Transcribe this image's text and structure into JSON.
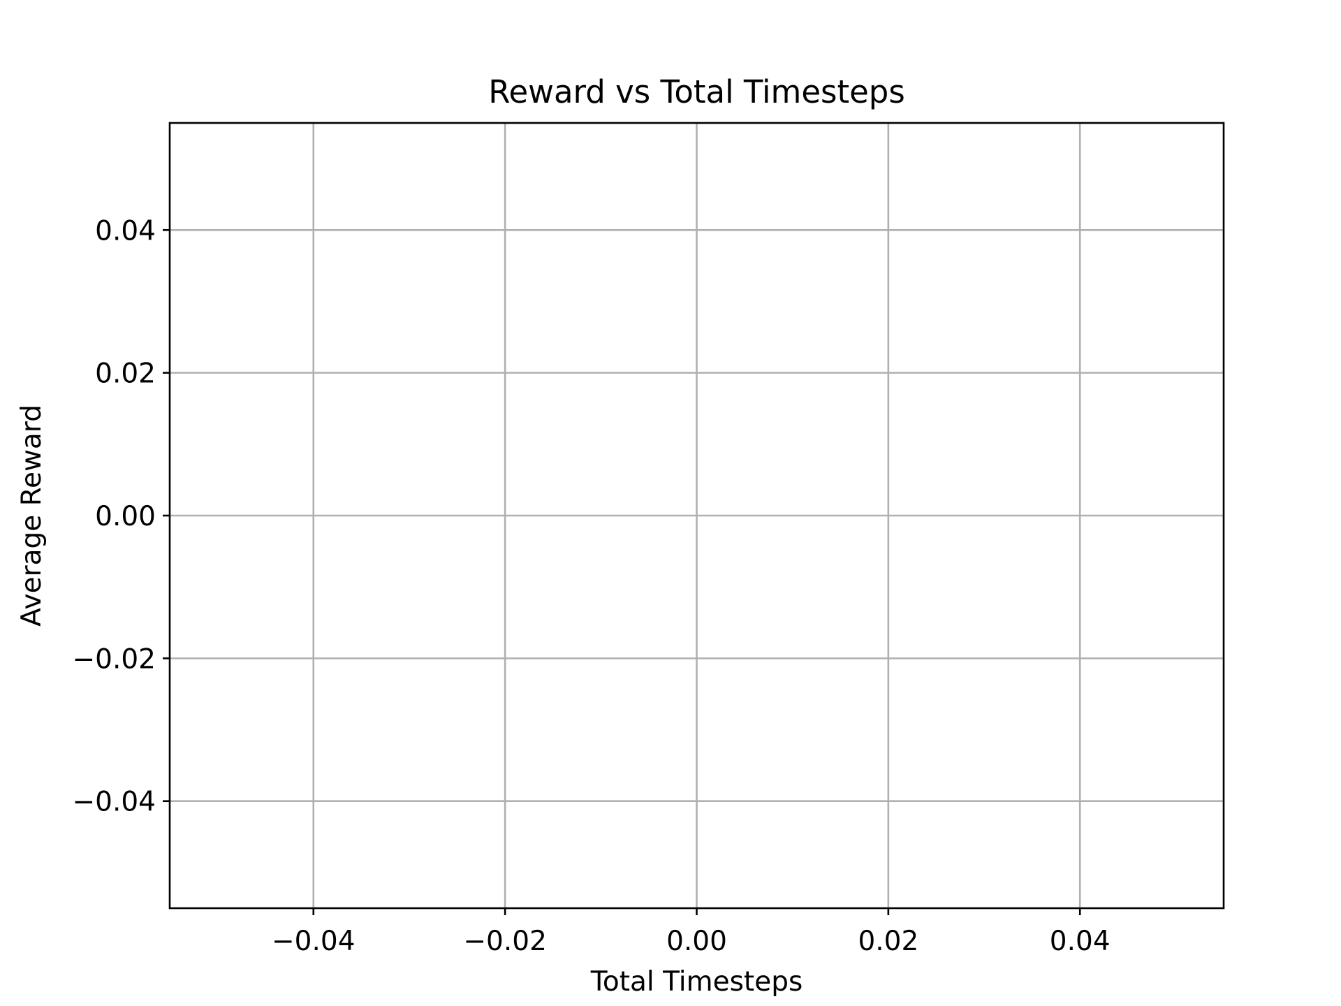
{
  "chart_data": {
    "type": "line",
    "title": "Reward vs Total Timesteps",
    "xlabel": "Total Timesteps",
    "ylabel": "Average Reward",
    "x": [],
    "series": [
      {
        "values": []
      }
    ],
    "xlim": [
      -0.055,
      0.055
    ],
    "ylim": [
      -0.055,
      0.055
    ],
    "xticks": [
      -0.04,
      -0.02,
      0.0,
      0.02,
      0.04
    ],
    "yticks": [
      -0.04,
      -0.02,
      0.0,
      0.02,
      0.04
    ],
    "xtick_labels": [
      "−0.04",
      "−0.02",
      "0.00",
      "0.02",
      "0.04"
    ],
    "ytick_labels": [
      "−0.04",
      "−0.02",
      "0.00",
      "0.02",
      "0.04"
    ],
    "grid": true,
    "colors": {
      "grid": "#b0b0b0",
      "frame": "#000000",
      "text": "#000000",
      "background": "#ffffff"
    }
  }
}
